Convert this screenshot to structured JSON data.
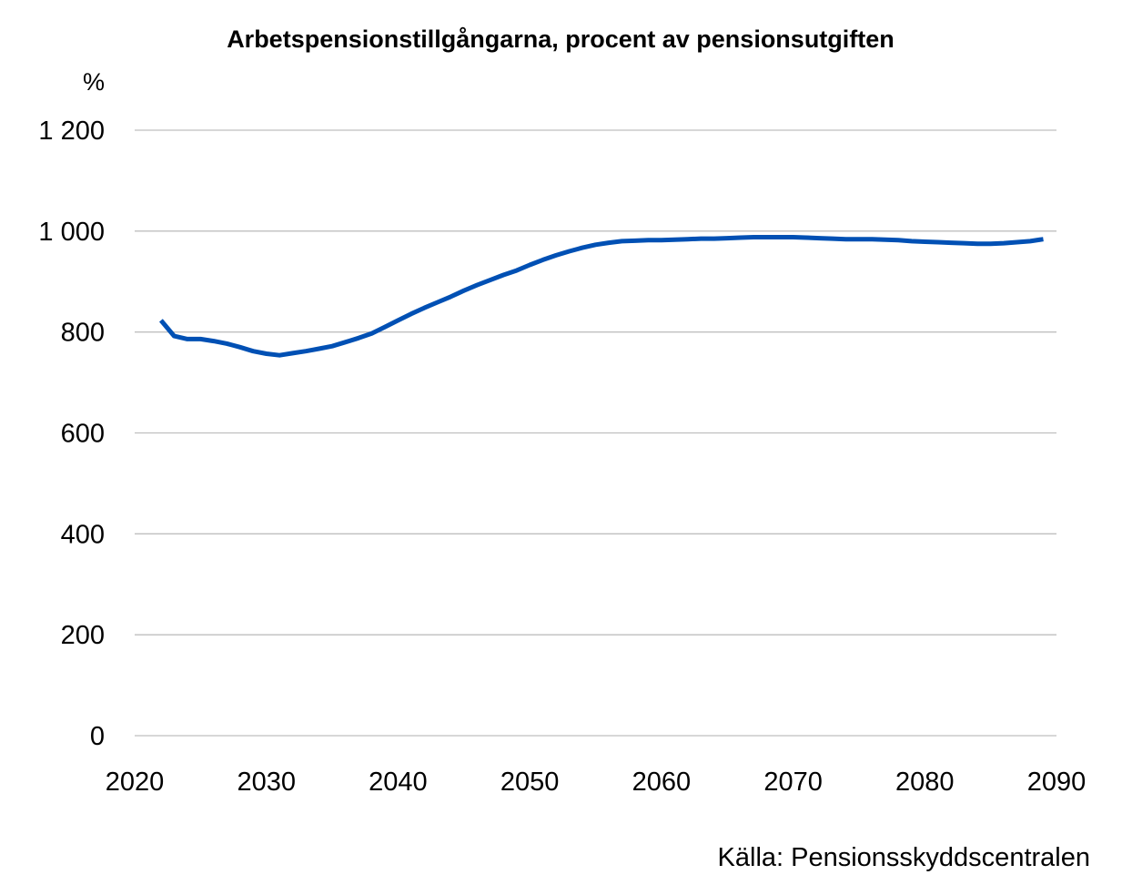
{
  "chart_data": {
    "type": "line",
    "title": "Arbetspensionstillgångarna, procent av pensionsutgiften",
    "ylabel": "%",
    "xlabel": "",
    "source": "Källa: Pensionsskyddscentralen",
    "xlim": [
      2020,
      2090
    ],
    "ylim": [
      0,
      1200
    ],
    "x_ticks": [
      2020,
      2030,
      2040,
      2050,
      2060,
      2070,
      2080,
      2090
    ],
    "x_tick_labels": [
      "2020",
      "2030",
      "2040",
      "2050",
      "2060",
      "2070",
      "2080",
      "2090"
    ],
    "y_ticks": [
      0,
      200,
      400,
      600,
      800,
      1000,
      1200
    ],
    "y_tick_labels": [
      "0",
      "200",
      "400",
      "600",
      "800",
      "1 000",
      "1 200"
    ],
    "grid": true,
    "legend": "none",
    "line_color": "#0050b4",
    "series": [
      {
        "x": [
          2022,
          2023,
          2024,
          2025,
          2026,
          2027,
          2028,
          2029,
          2030,
          2031,
          2032,
          2033,
          2034,
          2035,
          2036,
          2037,
          2038,
          2039,
          2040,
          2041,
          2042,
          2043,
          2044,
          2045,
          2046,
          2047,
          2048,
          2049,
          2050,
          2051,
          2052,
          2053,
          2054,
          2055,
          2056,
          2057,
          2058,
          2059,
          2060,
          2061,
          2062,
          2063,
          2064,
          2065,
          2066,
          2067,
          2068,
          2069,
          2070,
          2071,
          2072,
          2073,
          2074,
          2075,
          2076,
          2077,
          2078,
          2079,
          2080,
          2081,
          2082,
          2083,
          2084,
          2085,
          2086,
          2087,
          2088,
          2089
        ],
        "values": [
          823,
          792,
          786,
          786,
          782,
          777,
          770,
          762,
          757,
          754,
          758,
          762,
          767,
          772,
          780,
          788,
          797,
          810,
          823,
          836,
          848,
          859,
          870,
          882,
          893,
          903,
          913,
          922,
          933,
          943,
          952,
          960,
          967,
          973,
          977,
          980,
          981,
          982,
          982,
          983,
          984,
          985,
          985,
          986,
          987,
          988,
          988,
          988,
          988,
          987,
          986,
          985,
          984,
          984,
          984,
          983,
          982,
          980,
          979,
          978,
          977,
          976,
          975,
          975,
          976,
          978,
          980,
          984
        ]
      }
    ]
  }
}
